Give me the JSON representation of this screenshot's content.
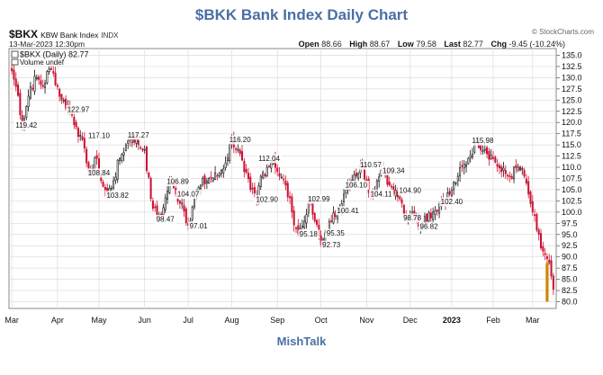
{
  "header": {
    "title": "$BKK Bank Index Daily Chart",
    "attribution": "© StockCharts.com",
    "symbol": "$BKX",
    "symbol_name": "KBW Bank Index",
    "exchange": "INDX",
    "datetime": "13-Mar-2023 12:30pm",
    "open_label": "Open",
    "open": "88.66",
    "high_label": "High",
    "high": "88.67",
    "low_label": "Low",
    "low": "79.58",
    "last_label": "Last",
    "last": "82.77",
    "chg_label": "Chg",
    "chg": "-9.45 (-10.24%)",
    "legend_price": "$BKX (Daily) 82.77",
    "legend_volume": "Volume undef"
  },
  "footer": {
    "text": "MishTalk"
  },
  "colors": {
    "up": "#111111",
    "down": "#cc1133",
    "volume_bar": "#cc8800",
    "grid": "#dcdcdc",
    "title": "#4a6fa5"
  },
  "chart_data": {
    "type": "candlestick",
    "title": "$BKK Bank Index Daily Chart",
    "series_name": "$BKX (Daily)",
    "ylim": [
      78.5,
      136.5
    ],
    "y_ticks": [
      80.0,
      82.5,
      85.0,
      87.5,
      90.0,
      92.5,
      95.0,
      97.5,
      100.0,
      102.5,
      105.0,
      107.5,
      110.0,
      112.5,
      115.0,
      117.5,
      120.0,
      122.5,
      125.0,
      127.5,
      130.0,
      132.5,
      135.0
    ],
    "x_tick_labels": [
      "Mar",
      "Apr",
      "May",
      "Jun",
      "Jul",
      "Aug",
      "Sep",
      "Oct",
      "Nov",
      "Dec",
      "2023",
      "Feb",
      "Mar"
    ],
    "x_tick_index": [
      0,
      22,
      42,
      64,
      85,
      106,
      128,
      149,
      171,
      192,
      212,
      232,
      251
    ],
    "n_days": 262,
    "grid": true,
    "anchors": [
      [
        0,
        131.5
      ],
      [
        3,
        126
      ],
      [
        5,
        119.42
      ],
      [
        9,
        128
      ],
      [
        12,
        130
      ],
      [
        15,
        128
      ],
      [
        18,
        132
      ],
      [
        20,
        131
      ],
      [
        24,
        125
      ],
      [
        28,
        122.97
      ],
      [
        31,
        119
      ],
      [
        33,
        117.1
      ],
      [
        36,
        111
      ],
      [
        38,
        108.84
      ],
      [
        41,
        112
      ],
      [
        43,
        107
      ],
      [
        46,
        103.82
      ],
      [
        49,
        107
      ],
      [
        52,
        112
      ],
      [
        55,
        115
      ],
      [
        58,
        117.27
      ],
      [
        61,
        115
      ],
      [
        64,
        114
      ],
      [
        67,
        103
      ],
      [
        70,
        98.47
      ],
      [
        73,
        101
      ],
      [
        76,
        106.89
      ],
      [
        79,
        104.07
      ],
      [
        82,
        102
      ],
      [
        85,
        97.01
      ],
      [
        88,
        103.5
      ],
      [
        91,
        106
      ],
      [
        95,
        107.5
      ],
      [
        99,
        108
      ],
      [
        103,
        111
      ],
      [
        106,
        116.2
      ],
      [
        109,
        114
      ],
      [
        112,
        109
      ],
      [
        115,
        105
      ],
      [
        118,
        102.9
      ],
      [
        120,
        108
      ],
      [
        123,
        110
      ],
      [
        126,
        112.04
      ],
      [
        129,
        108
      ],
      [
        132,
        106
      ],
      [
        135,
        100
      ],
      [
        138,
        95.18
      ],
      [
        141,
        98
      ],
      [
        143,
        102.99
      ],
      [
        146,
        98
      ],
      [
        149,
        92.73
      ],
      [
        151,
        95.35
      ],
      [
        154,
        98
      ],
      [
        157,
        100.41
      ],
      [
        160,
        104
      ],
      [
        163,
        106.1
      ],
      [
        166,
        108
      ],
      [
        168,
        110.57
      ],
      [
        171,
        107
      ],
      [
        173,
        104.11
      ],
      [
        176,
        107
      ],
      [
        179,
        109.34
      ],
      [
        182,
        106
      ],
      [
        185,
        104.9
      ],
      [
        188,
        102
      ],
      [
        190,
        98.78
      ],
      [
        193,
        100
      ],
      [
        196,
        96.82
      ],
      [
        199,
        99
      ],
      [
        203,
        100
      ],
      [
        207,
        102.4
      ],
      [
        211,
        104
      ],
      [
        215,
        108
      ],
      [
        220,
        112
      ],
      [
        224,
        115.98
      ],
      [
        228,
        114
      ],
      [
        232,
        112
      ],
      [
        236,
        109
      ],
      [
        240,
        108
      ],
      [
        244,
        110
      ],
      [
        247,
        108
      ],
      [
        249,
        104
      ],
      [
        251,
        100
      ],
      [
        253,
        96
      ],
      [
        255,
        92
      ],
      [
        257,
        90.5
      ],
      [
        259,
        88.66
      ],
      [
        261,
        82.77
      ]
    ],
    "annotations": [
      {
        "x": 7,
        "y": 119.42,
        "text": "119.42"
      },
      {
        "x": 32,
        "y": 122.97,
        "text": "122.97"
      },
      {
        "x": 42,
        "y": 117.1,
        "text": "117.10"
      },
      {
        "x": 42,
        "y": 108.84,
        "text": "108.84"
      },
      {
        "x": 51,
        "y": 103.82,
        "text": "103.82"
      },
      {
        "x": 61,
        "y": 117.27,
        "text": "117.27"
      },
      {
        "x": 80,
        "y": 106.89,
        "text": "106.89"
      },
      {
        "x": 74,
        "y": 98.47,
        "text": "98.47"
      },
      {
        "x": 85,
        "y": 104.07,
        "text": "104.07"
      },
      {
        "x": 90,
        "y": 97.01,
        "text": "97.01"
      },
      {
        "x": 110,
        "y": 116.2,
        "text": "116.20"
      },
      {
        "x": 124,
        "y": 112.04,
        "text": "112.04"
      },
      {
        "x": 123,
        "y": 102.9,
        "text": "102.90"
      },
      {
        "x": 148,
        "y": 102.99,
        "text": "102.99"
      },
      {
        "x": 143,
        "y": 95.18,
        "text": "95.18"
      },
      {
        "x": 154,
        "y": 92.73,
        "text": "92.73"
      },
      {
        "x": 156,
        "y": 95.35,
        "text": "95.35"
      },
      {
        "x": 166,
        "y": 106.1,
        "text": "106.10"
      },
      {
        "x": 162,
        "y": 100.41,
        "text": "100.41"
      },
      {
        "x": 173,
        "y": 110.57,
        "text": "110.57"
      },
      {
        "x": 178,
        "y": 104.11,
        "text": "104.11"
      },
      {
        "x": 184,
        "y": 109.34,
        "text": "109.34"
      },
      {
        "x": 192,
        "y": 104.9,
        "text": "104.90"
      },
      {
        "x": 193,
        "y": 98.78,
        "text": "98.78"
      },
      {
        "x": 201,
        "y": 96.82,
        "text": "96.82"
      },
      {
        "x": 212,
        "y": 102.4,
        "text": "102.40"
      },
      {
        "x": 227,
        "y": 115.98,
        "text": "115.98"
      }
    ],
    "volume_bars": [
      {
        "x": 258,
        "y_bottom": 80.0,
        "y_top": 88.66
      }
    ]
  }
}
